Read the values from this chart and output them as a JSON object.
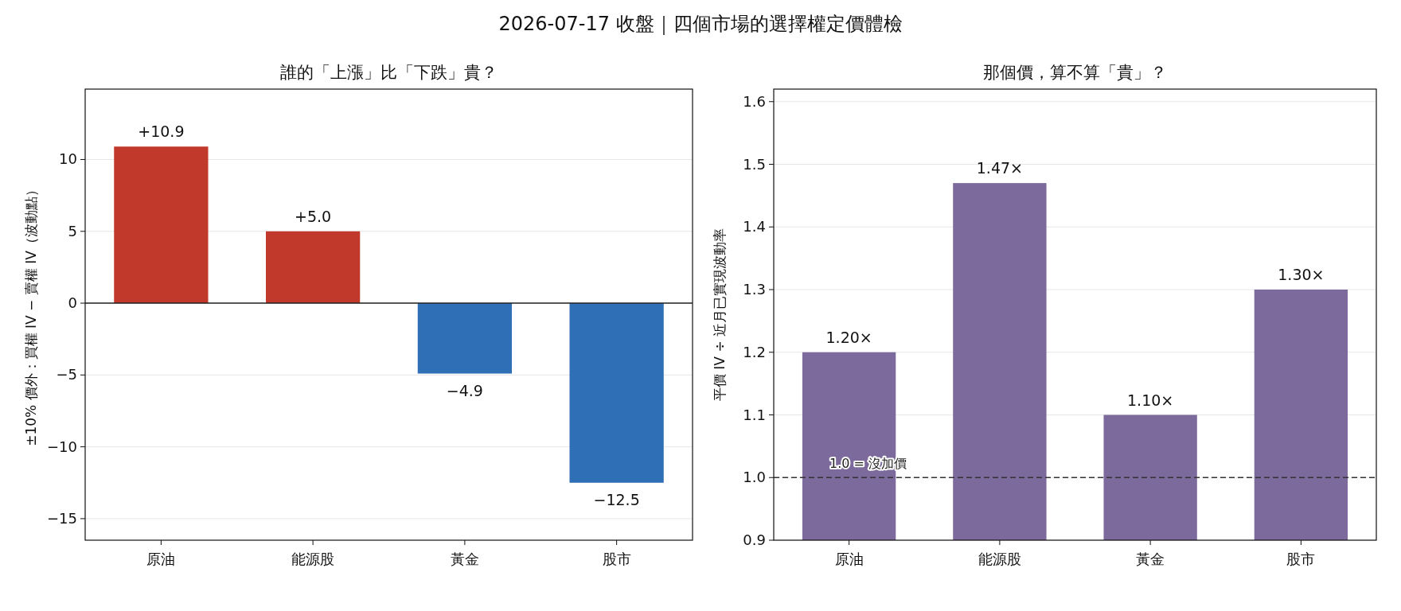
{
  "chart_data": [
    {
      "type": "bar",
      "title": "誰的「上漲」比「下跌」貴？",
      "ylabel": "±10% 價外：買權 IV − 賣權 IV（波動點）",
      "annotations": [
        "2026-07-17 收盤｜四個市場的選擇權定價體檢"
      ],
      "categories": [
        "原油",
        "能源股",
        "黃金",
        "股市"
      ],
      "values": [
        10.9,
        5.0,
        -4.9,
        -12.5
      ],
      "colors": [
        "#c0392b",
        "#c0392b",
        "#2e6fb5",
        "#2e6fb5"
      ],
      "value_labels": [
        "+10.9",
        "+5.0",
        "−4.9",
        "−12.5"
      ],
      "ylim": [
        -16.5,
        14.9
      ],
      "yticks": [
        {
          "value": -15,
          "label": "−15"
        },
        {
          "value": -10,
          "label": "−10"
        },
        {
          "value": -5,
          "label": "−5"
        },
        0,
        5,
        10
      ],
      "ref_lines": [
        {
          "axis": "y",
          "value": 0,
          "color": "#222222",
          "line_style": "solid"
        }
      ],
      "grid": "y"
    },
    {
      "type": "bar",
      "title": "那個價，算不算「貴」？",
      "ylabel": "平價 IV ÷ 近月已實現波動率",
      "categories": [
        "原油",
        "能源股",
        "黃金",
        "股市"
      ],
      "values": [
        1.2,
        1.47,
        1.1,
        1.3
      ],
      "colors": [
        "#7b6a9b",
        "#7b6a9b",
        "#7b6a9b",
        "#7b6a9b"
      ],
      "value_labels": [
        "1.20×",
        "1.47×",
        "1.10×",
        "1.30×"
      ],
      "ylim": [
        0.9,
        1.62
      ],
      "yticks": [
        0.9,
        {
          "value": 1.0,
          "label": "1.0"
        },
        1.1,
        1.2,
        1.3,
        1.4,
        1.5,
        1.6
      ],
      "ref_lines": [
        {
          "axis": "y",
          "value": 1.0,
          "label": "1.0 = 沒加價",
          "color": "#333333",
          "line_style": "dashed"
        }
      ],
      "grid": "y"
    }
  ]
}
